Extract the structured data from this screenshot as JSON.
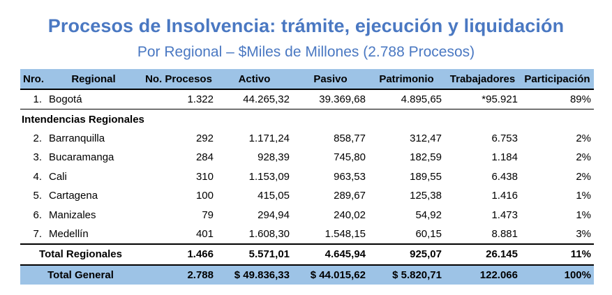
{
  "title": "Procesos de Insolvencia: trámite, ejecución y liquidación",
  "subtitle": "Por Regional – $Miles de Millones (2.788 Procesos)",
  "headers": [
    "Nro.",
    "Regional",
    "No. Procesos",
    "Activo",
    "Pasivo",
    "Patrimonio",
    "Trabajadores",
    "Participación"
  ],
  "bogota": {
    "nro": "1.",
    "name": "Bogotá",
    "procesos": "1.322",
    "activo": "44.265,32",
    "pasivo": "39.369,68",
    "patrimonio": "4.895,65",
    "trabajadores": "*95.921",
    "participacion": "89%"
  },
  "section_label": "Intendencias Regionales",
  "regionales": [
    {
      "nro": "2.",
      "name": "Barranquilla",
      "procesos": "292",
      "activo": "1.171,24",
      "pasivo": "858,77",
      "patrimonio": "312,47",
      "trabajadores": "6.753",
      "participacion": "2%"
    },
    {
      "nro": "3.",
      "name": "Bucaramanga",
      "procesos": "284",
      "activo": "928,39",
      "pasivo": "745,80",
      "patrimonio": "182,59",
      "trabajadores": "1.184",
      "participacion": "2%"
    },
    {
      "nro": "4.",
      "name": "Cali",
      "procesos": "310",
      "activo": "1.153,09",
      "pasivo": "963,53",
      "patrimonio": "189,55",
      "trabajadores": "6.438",
      "participacion": "2%"
    },
    {
      "nro": "5.",
      "name": "Cartagena",
      "procesos": "100",
      "activo": "415,05",
      "pasivo": "289,67",
      "patrimonio": "125,38",
      "trabajadores": "1.416",
      "participacion": "1%"
    },
    {
      "nro": "6.",
      "name": "Manizales",
      "procesos": "79",
      "activo": "294,94",
      "pasivo": "240,02",
      "patrimonio": "54,92",
      "trabajadores": "1.473",
      "participacion": "1%"
    },
    {
      "nro": "7.",
      "name": "Medellín",
      "procesos": "401",
      "activo": "1.608,30",
      "pasivo": "1.548,15",
      "patrimonio": "60,15",
      "trabajadores": "8.881",
      "participacion": "3%"
    }
  ],
  "total_regionales": {
    "label": "Total Regionales",
    "procesos": "1.466",
    "activo": "5.571,01",
    "pasivo": "4.645,94",
    "patrimonio": "925,07",
    "trabajadores": "26.145",
    "participacion": "11%"
  },
  "total_general": {
    "label": "Total General",
    "procesos": "2.788",
    "activo": "$ 49.836,33",
    "pasivo": "$ 44.015,62",
    "patrimonio": "$ 5.820,71",
    "trabajadores": "122.066",
    "participacion": "100%"
  }
}
